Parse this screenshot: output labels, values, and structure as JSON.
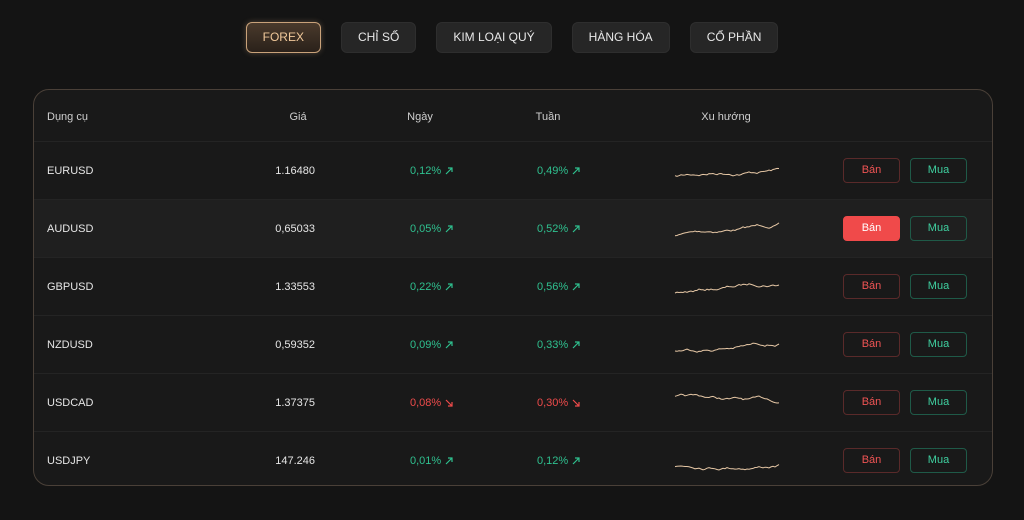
{
  "tabs": [
    {
      "label": "FOREX",
      "active": true
    },
    {
      "label": "CHỈ SỐ",
      "active": false
    },
    {
      "label": "KIM LOẠI QUÝ",
      "active": false
    },
    {
      "label": "HÀNG HÓA",
      "active": false
    },
    {
      "label": "CỔ PHẦN",
      "active": false
    }
  ],
  "table": {
    "headers": [
      "Dụng cụ",
      "Giá",
      "Ngày",
      "Tuần",
      "Xu hướng"
    ],
    "sell_label": "Bán",
    "buy_label": "Mua",
    "rows": [
      {
        "symbol": "EURUSD",
        "price": "1.16480",
        "day": "0,12%",
        "day_direction": "up",
        "week": "0,49%",
        "week_direction": "up",
        "highlighted": false
      },
      {
        "symbol": "AUDUSD",
        "price": "0,65033",
        "day": "0,05%",
        "day_direction": "up",
        "week": "0,52%",
        "week_direction": "up",
        "highlighted": true
      },
      {
        "symbol": "GBPUSD",
        "price": "1.33553",
        "day": "0,22%",
        "day_direction": "up",
        "week": "0,56%",
        "week_direction": "up",
        "highlighted": false
      },
      {
        "symbol": "NZDUSD",
        "price": "0,59352",
        "day": "0,09%",
        "day_direction": "up",
        "week": "0,33%",
        "week_direction": "up",
        "highlighted": false
      },
      {
        "symbol": "USDCAD",
        "price": "1.37375",
        "day": "0,08%",
        "day_direction": "down",
        "week": "0,30%",
        "week_direction": "down",
        "highlighted": false
      },
      {
        "symbol": "USDJPY",
        "price": "147.246",
        "day": "0,01%",
        "day_direction": "up",
        "week": "0,12%",
        "week_direction": "up",
        "highlighted": false
      }
    ]
  }
}
